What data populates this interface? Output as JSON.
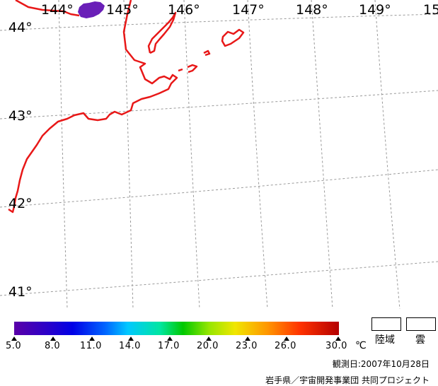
{
  "map": {
    "lon_labels": [
      "144°",
      "145°",
      "146°",
      "147°",
      "148°",
      "149°",
      "15"
    ],
    "lat_labels": [
      "44°",
      "43°",
      "42°",
      "41°"
    ]
  },
  "colors": {
    "coastline": "#e81818",
    "grid": "#9a9a9a",
    "cloud_patch": "#6a1fb8"
  },
  "legend": {
    "ticks": [
      "5.0",
      "8.0",
      "11.0",
      "14.0",
      "17.0",
      "20.0",
      "23.0",
      "26.0",
      "30.0"
    ],
    "unit": "℃",
    "land_label": "陸域",
    "cloud_label": "雲"
  },
  "footer": {
    "observation_date": "観測日:2007年10月28日",
    "credit": "岩手県／宇宙開発事業団 共同プロジェクト"
  }
}
